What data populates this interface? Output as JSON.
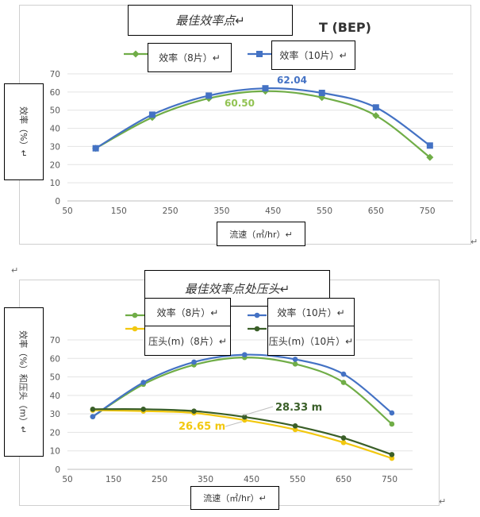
{
  "charts": [
    {
      "type": "line",
      "title": "最佳效率点↵",
      "title_suffix": "T (BEP)",
      "xlabel": "流速（㎥/hr）↵",
      "ylabel": "效率（%）↵",
      "xlim": [
        50,
        800
      ],
      "ylim": [
        0,
        70
      ],
      "xticks": [
        50,
        150,
        250,
        350,
        450,
        550,
        650,
        750
      ],
      "yticks": [
        0,
        10,
        20,
        30,
        40,
        50,
        60,
        70
      ],
      "series": [
        {
          "name": "效率（8片）↵",
          "color": "#70ad47",
          "marker": "diamond",
          "x": [
            105,
            215,
            325,
            435,
            545,
            650,
            755
          ],
          "y": [
            29,
            46,
            56.5,
            60.5,
            57,
            47,
            24
          ]
        },
        {
          "name": "效率（10片）↵",
          "color": "#4472c4",
          "marker": "square",
          "x": [
            105,
            215,
            325,
            435,
            545,
            650,
            755
          ],
          "y": [
            29,
            47.5,
            58,
            62.04,
            59.5,
            51.5,
            30.5
          ]
        }
      ],
      "annotations": [
        {
          "text": "62.04",
          "color": "#4472c4"
        },
        {
          "text": "60.50",
          "color": "#92c353"
        }
      ]
    },
    {
      "type": "line",
      "title": "最佳效率点处压头↵",
      "xlabel": "流速（㎥/hr）↵",
      "ylabel": "效率（%）和压头（m）↵",
      "xlim": [
        50,
        800
      ],
      "ylim": [
        0,
        70
      ],
      "xticks": [
        50,
        150,
        250,
        350,
        450,
        550,
        650,
        750
      ],
      "yticks": [
        0,
        10,
        20,
        30,
        40,
        50,
        60,
        70
      ],
      "series": [
        {
          "name": "效率（8片）↵",
          "color": "#70ad47",
          "marker": "circle",
          "x": [
            105,
            215,
            325,
            435,
            545,
            650,
            755
          ],
          "y": [
            28.5,
            46,
            56.5,
            60.5,
            57,
            47,
            24.5
          ]
        },
        {
          "name": "效率（10片）↵",
          "color": "#4472c4",
          "marker": "circle",
          "x": [
            105,
            215,
            325,
            435,
            545,
            650,
            755
          ],
          "y": [
            28.5,
            47,
            58,
            62,
            59.5,
            51.5,
            30.5
          ]
        },
        {
          "name": "压头(m)（8片）↵",
          "color": "#f2c80f",
          "marker": "circle",
          "x": [
            105,
            215,
            325,
            435,
            545,
            650,
            755
          ],
          "y": [
            32,
            31.5,
            30.5,
            26.65,
            21.5,
            14.5,
            6
          ]
        },
        {
          "name": "压头(m)（10片）↵",
          "color": "#3a5f28",
          "marker": "circle",
          "x": [
            105,
            215,
            325,
            435,
            545,
            650,
            755
          ],
          "y": [
            32.5,
            32.5,
            31.5,
            28.33,
            23.5,
            17,
            8
          ]
        }
      ],
      "annotations": [
        {
          "text": "28.33 m",
          "color": "#3a5f28"
        },
        {
          "text": "26.65 m",
          "color": "#f2c80f"
        }
      ]
    }
  ]
}
